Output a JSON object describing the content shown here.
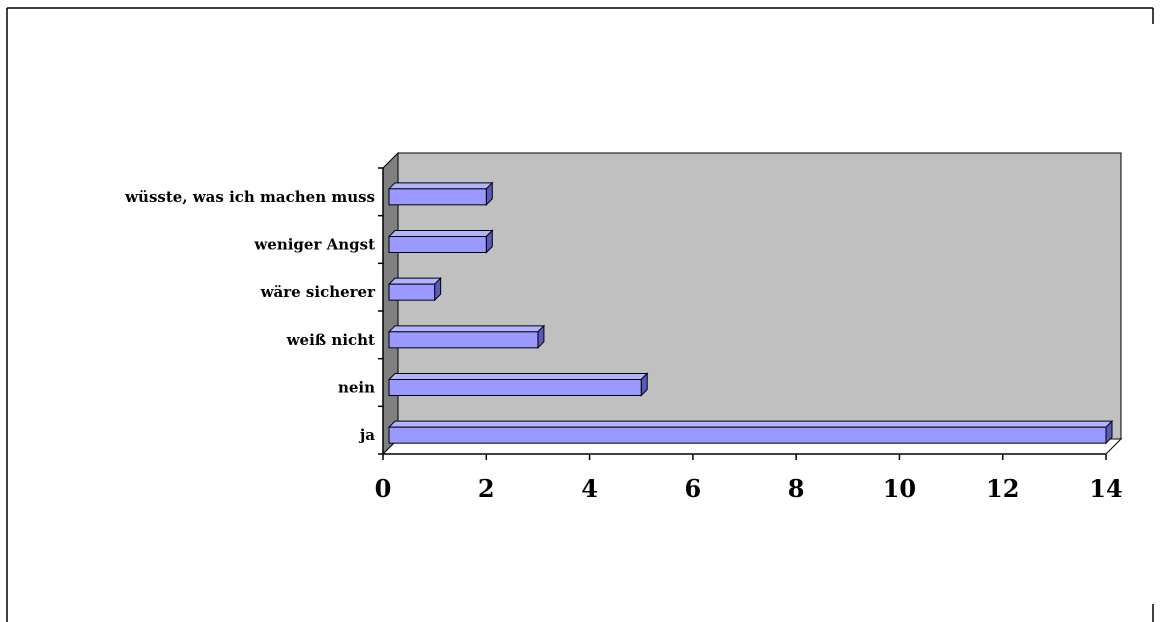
{
  "chart_data": {
    "type": "bar",
    "orientation": "horizontal",
    "style": "3d",
    "title": "",
    "xlabel": "",
    "ylabel": "",
    "categories": [
      "ja",
      "nein",
      "weiß nicht",
      "wäre sicherer",
      "weniger Angst",
      "wüsste, was ich machen muss"
    ],
    "values": [
      14,
      5,
      3,
      1,
      2,
      2
    ],
    "xlim": [
      0,
      14
    ],
    "xticks": [
      "0",
      "2",
      "4",
      "6",
      "8",
      "10",
      "12",
      "14"
    ],
    "grid": false,
    "legend": "none",
    "colors": {
      "bar_front": "#9999ff",
      "bar_top": "#b3b3ff",
      "bar_side": "#5a5ab8",
      "plot_back_wall": "#c0c0c0",
      "plot_side_wall": "#808080",
      "axis": "#000000"
    }
  }
}
